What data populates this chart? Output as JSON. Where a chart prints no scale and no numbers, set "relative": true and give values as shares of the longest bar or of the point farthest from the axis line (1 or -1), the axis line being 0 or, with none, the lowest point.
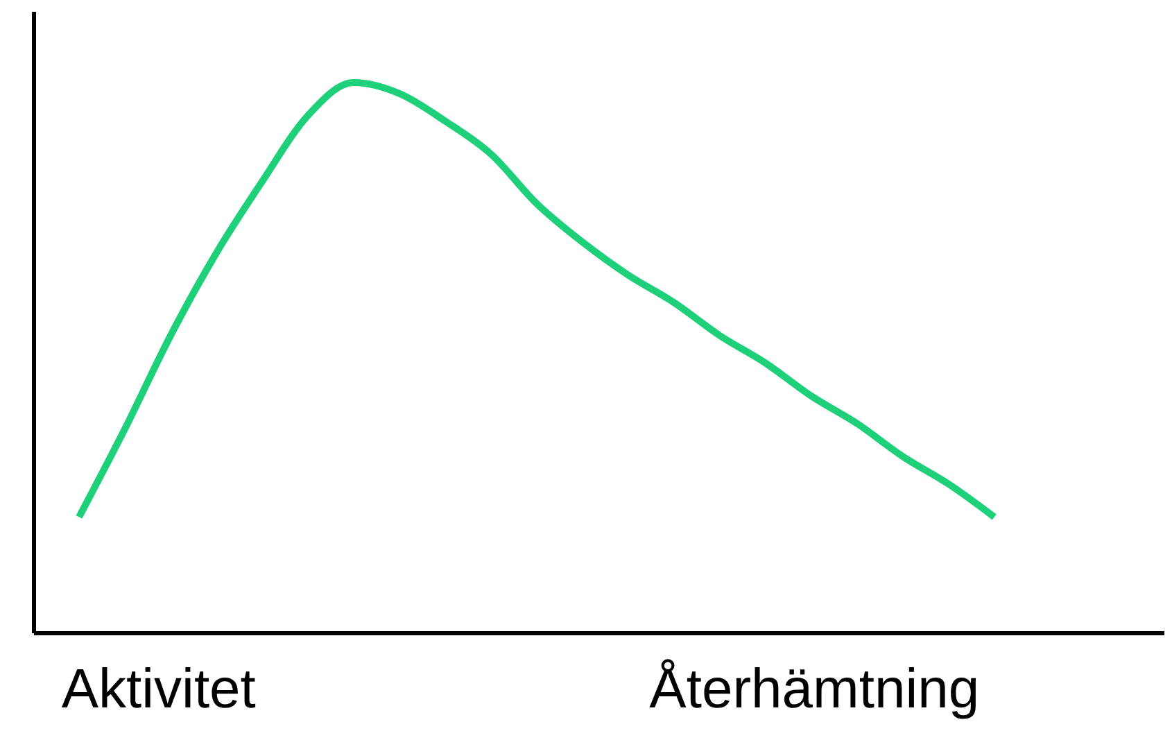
{
  "chart_data": {
    "type": "line",
    "relative": true,
    "grid": false,
    "marker": "none",
    "line_style": "solid",
    "categories": [
      null,
      null,
      null,
      null,
      null,
      null,
      null,
      null,
      null,
      null,
      null,
      null,
      null,
      null,
      null,
      null,
      null,
      null,
      null,
      null,
      null
    ],
    "series": [
      {
        "color": "#1fd07a",
        "values": [
          0.21,
          0.37,
          0.54,
          0.69,
          0.82,
          0.94,
          1.0,
          0.98,
          0.93,
          0.87,
          0.78,
          0.71,
          0.65,
          0.6,
          0.54,
          0.49,
          0.43,
          0.38,
          0.32,
          0.27,
          0.21
        ]
      }
    ],
    "annotations": [
      "Aktivitet",
      "Återhämtning"
    ]
  }
}
